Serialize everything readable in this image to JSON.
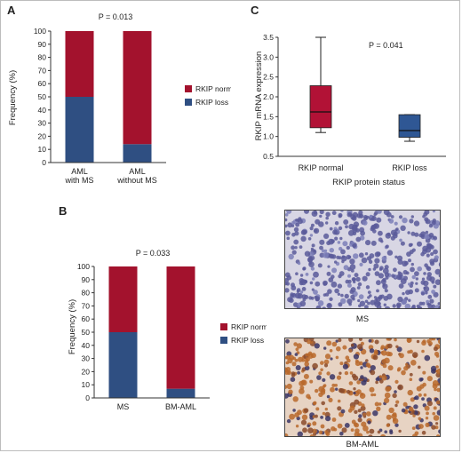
{
  "colors": {
    "normal": "#a3122d",
    "loss": "#2f4f82",
    "box_normal": "#b21236",
    "box_loss": "#2f5794",
    "axis": "#333333"
  },
  "panels": {
    "a": {
      "letter": "A",
      "pvalue": "P = 0.013",
      "ylabel": "Frequency (%)",
      "legend": [
        "RKIP normal",
        "RKIP loss"
      ]
    },
    "b": {
      "letter": "B",
      "pvalue": "P = 0.033",
      "ylabel": "Frequency (%)",
      "legend": [
        "RKIP normal",
        "RKIP loss"
      ]
    },
    "c": {
      "letter": "C",
      "pvalue": "P = 0.041",
      "ylabel": "RKIP mRNA expression",
      "xlabel": "RKIP protein status"
    }
  },
  "chart_data": [
    {
      "id": "A",
      "type": "bar",
      "stacked": true,
      "categories": [
        [
          "AML",
          "with MS"
        ],
        [
          "AML",
          "without MS"
        ]
      ],
      "series": [
        {
          "name": "RKIP loss",
          "values": [
            50,
            14
          ]
        },
        {
          "name": "RKIP normal",
          "values": [
            50,
            86
          ]
        }
      ],
      "ylabel": "Frequency (%)",
      "ylim": [
        0,
        100
      ],
      "yticks": [
        0,
        10,
        20,
        30,
        40,
        50,
        60,
        70,
        80,
        90,
        100
      ],
      "annotation": "P = 0.013",
      "legend_position": "right"
    },
    {
      "id": "B",
      "type": "bar",
      "stacked": true,
      "categories": [
        [
          "MS"
        ],
        [
          "BM-AML"
        ]
      ],
      "series": [
        {
          "name": "RKIP loss",
          "values": [
            50,
            7
          ]
        },
        {
          "name": "RKIP normal",
          "values": [
            50,
            93
          ]
        }
      ],
      "ylabel": "Frequency (%)",
      "ylim": [
        0,
        100
      ],
      "yticks": [
        0,
        10,
        20,
        30,
        40,
        50,
        60,
        70,
        80,
        90,
        100
      ],
      "annotation": "P = 0.033",
      "legend_position": "right"
    },
    {
      "id": "C",
      "type": "box",
      "categories": [
        "RKIP normal",
        "RKIP loss"
      ],
      "boxes": [
        {
          "name": "RKIP normal",
          "min": 1.1,
          "q1": 1.22,
          "median": 1.62,
          "q3": 2.28,
          "max": 3.5
        },
        {
          "name": "RKIP loss",
          "min": 0.88,
          "q1": 0.98,
          "median": 1.15,
          "q3": 1.55,
          "max": 1.55
        }
      ],
      "ylabel": "RKIP mRNA expression",
      "xlabel": "RKIP protein status",
      "ylim": [
        0.5,
        3.5
      ],
      "yticks": [
        0.5,
        1.0,
        1.5,
        2.0,
        2.5,
        3.0,
        3.5
      ],
      "annotation": "P = 0.041"
    }
  ],
  "micrographs": [
    {
      "label": "MS",
      "stain": "weak"
    },
    {
      "label": "BM-AML",
      "stain": "strong"
    }
  ]
}
